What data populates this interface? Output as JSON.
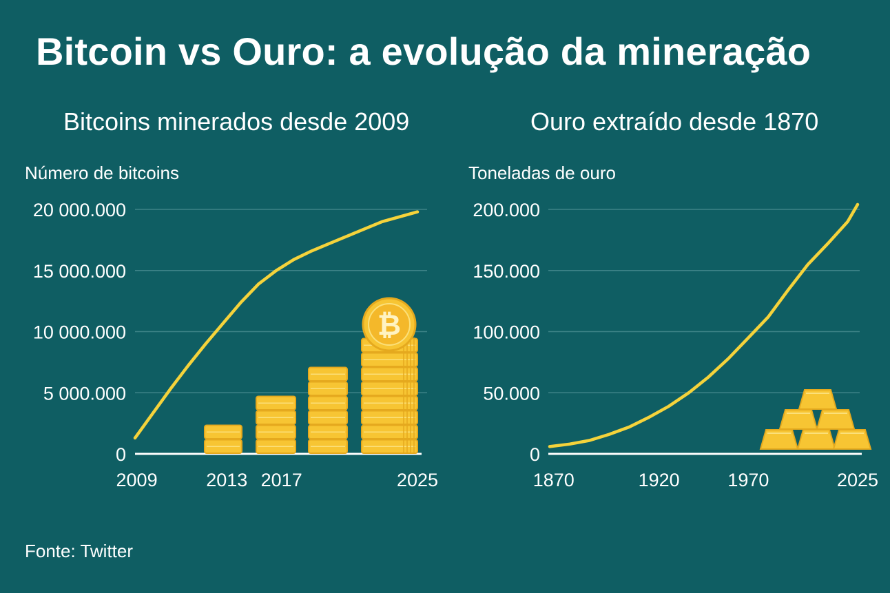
{
  "title": "Bitcoin vs Ouro: a evolução da mineração",
  "source": "Fonte: Twitter",
  "colors": {
    "background": "#0f5e63",
    "gridline": "#3f8488",
    "line": "#f5d33b",
    "gold": "#f7c533",
    "gold_dark": "#e5a91e",
    "text": "#ffffff"
  },
  "chart_data": [
    {
      "type": "line",
      "title": "Bitcoins minerados desde 2009",
      "ylabel": "Número de bitcoins",
      "xlabel": "",
      "ylim": [
        0,
        20000000
      ],
      "xlim": [
        2009,
        2025
      ],
      "yticks": [
        0,
        5000000,
        10000000,
        15000000,
        20000000
      ],
      "ytick_labels": [
        "0",
        "5 000.000",
        "10 000.000",
        "15 000.000",
        "20 000.000"
      ],
      "xticks": [
        2009,
        2013,
        2017,
        2025
      ],
      "xtick_labels": [
        "2009",
        "2013",
        "2017",
        "2025"
      ],
      "xtick_positions": [
        2009.1,
        2014.2,
        2017.3,
        2025
      ],
      "grid": true,
      "series": [
        {
          "name": "Bitcoins minerados",
          "x": [
            2009,
            2010,
            2011,
            2012,
            2013,
            2014,
            2015,
            2016,
            2017,
            2018,
            2019,
            2020,
            2021,
            2022,
            2023,
            2024,
            2025
          ],
          "y": [
            1300000,
            3300000,
            5300000,
            7200000,
            9000000,
            10700000,
            12400000,
            13900000,
            15000000,
            15900000,
            16600000,
            17200000,
            17800000,
            18400000,
            19000000,
            19400000,
            19800000
          ]
        }
      ],
      "decoration": "coin-stacks"
    },
    {
      "type": "line",
      "title": "Ouro extraído desde 1870",
      "ylabel": "Toneladas de ouro",
      "xlabel": "",
      "ylim": [
        0,
        200000
      ],
      "xlim": [
        1870,
        2025
      ],
      "yticks": [
        0,
        50000,
        100000,
        150000,
        200000
      ],
      "ytick_labels": [
        "0",
        "50.000",
        "100.000",
        "150.000",
        "200.000"
      ],
      "xticks": [
        1870,
        1920,
        1970,
        2025
      ],
      "xtick_labels": [
        "1870",
        "1920",
        "1970",
        "2025"
      ],
      "xtick_positions": [
        1872,
        1925,
        1970,
        2025
      ],
      "grid": true,
      "series": [
        {
          "name": "Ouro extraído",
          "x": [
            1870,
            1880,
            1890,
            1900,
            1910,
            1920,
            1930,
            1940,
            1950,
            1960,
            1970,
            1980,
            1990,
            2000,
            2010,
            2020,
            2025
          ],
          "y": [
            6000,
            8000,
            11000,
            16000,
            22000,
            30000,
            39000,
            50000,
            63000,
            78000,
            95000,
            112000,
            134000,
            155000,
            172000,
            190000,
            204000
          ]
        }
      ],
      "decoration": "gold-bars"
    }
  ]
}
